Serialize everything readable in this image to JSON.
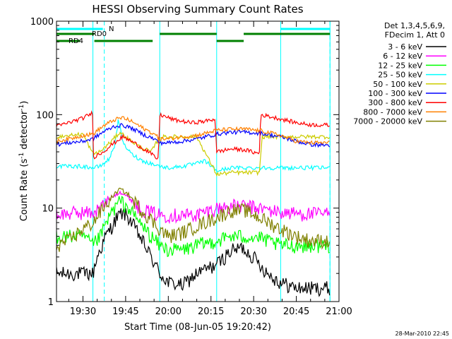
{
  "chart_data": {
    "type": "line",
    "title": "HESSI Observing Summary Count Rates",
    "xlabel": "Start Time (08-Jun-05 19:20:42)",
    "ylabel": "Count Rate (s⁻¹ detector⁻¹)",
    "ylabel_main": "Count Rate (s",
    "ylabel_sup1": "-1",
    "ylabel_mid": " detector",
    "ylabel_sup2": "-1",
    "ylabel_end": ")",
    "y_scale": "log",
    "ylim": [
      1,
      1000
    ],
    "xlim": [
      "19:20:42",
      "21:00:00"
    ],
    "x_ticks": [
      "19:30",
      "19:45",
      "20:00",
      "20:15",
      "20:30",
      "20:45",
      "21:00"
    ],
    "y_ticks": [
      "1",
      "10",
      "100",
      "1000"
    ],
    "legend_header": [
      "Det 1,3,4,5,6,9,",
      "FDecim 1, Att 0"
    ],
    "timestamp": "28-Mar-2010 22:45",
    "flag_labels": {
      "rd0": "RD0",
      "rd4": "RD4",
      "n": "N"
    },
    "colors": {
      "night_lines": "#00ffff",
      "rd0": "#008000",
      "rd4": "#008000",
      "n_flag": "#00ffff"
    },
    "night_boundaries": [
      "19:20:42",
      "19:33:30",
      "19:57:00",
      "20:17:00",
      "20:39:30",
      "20:56:50"
    ],
    "dashed_lines": [
      "19:37:30",
      "20:56:50"
    ],
    "flags": {
      "n": [
        [
          "19:20:42",
          "19:37:00"
        ],
        [
          "20:39:30",
          "20:56:50"
        ]
      ],
      "rd0": [
        [
          "19:20:42",
          "19:34:00"
        ],
        [
          "19:57:00",
          "20:17:00"
        ],
        [
          "20:26:30",
          "20:56:50"
        ]
      ],
      "rd4": [
        [
          "19:20:42",
          "19:29:00"
        ],
        [
          "19:34:00",
          "19:54:30"
        ],
        [
          "20:17:00",
          "20:26:30"
        ]
      ]
    },
    "series": [
      {
        "name": "3 - 6 keV",
        "color": "#000000",
        "points": [
          [
            "19:20:42",
            2
          ],
          [
            "19:25:00",
            2
          ],
          [
            "19:30:00",
            2
          ],
          [
            "19:33:30",
            2
          ],
          [
            "19:35:00",
            3
          ],
          [
            "19:38:00",
            5
          ],
          [
            "19:42:00",
            8
          ],
          [
            "19:44:00",
            9
          ],
          [
            "19:46:00",
            8
          ],
          [
            "19:50:00",
            5
          ],
          [
            "19:54:00",
            3
          ],
          [
            "19:57:00",
            2
          ],
          [
            "20:00:00",
            1.6
          ],
          [
            "20:05:00",
            1.5
          ],
          [
            "20:10:00",
            2
          ],
          [
            "20:17:00",
            2.5
          ],
          [
            "20:22:00",
            3.5
          ],
          [
            "20:26:00",
            3.8
          ],
          [
            "20:30:00",
            3
          ],
          [
            "20:35:00",
            2
          ],
          [
            "20:39:30",
            1.6
          ],
          [
            "20:45:00",
            1.4
          ],
          [
            "20:50:00",
            1.4
          ],
          [
            "20:56:50",
            1.4
          ]
        ]
      },
      {
        "name": "6 - 12 keV",
        "color": "#ff00ff",
        "points": [
          [
            "19:20:42",
            8.5
          ],
          [
            "19:25:00",
            8.8
          ],
          [
            "19:30:00",
            9
          ],
          [
            "19:33:30",
            9
          ],
          [
            "19:36:00",
            10
          ],
          [
            "19:40:00",
            13
          ],
          [
            "19:43:00",
            15
          ],
          [
            "19:46:00",
            13
          ],
          [
            "19:50:00",
            10
          ],
          [
            "19:54:00",
            9
          ],
          [
            "19:57:00",
            8.5
          ],
          [
            "20:00:00",
            8.5
          ],
          [
            "20:05:00",
            8.5
          ],
          [
            "20:10:00",
            8.5
          ],
          [
            "20:17:00",
            10
          ],
          [
            "20:22:00",
            10.5
          ],
          [
            "20:27:00",
            10.5
          ],
          [
            "20:32:00",
            10
          ],
          [
            "20:39:30",
            9
          ],
          [
            "20:45:00",
            8.8
          ],
          [
            "20:50:00",
            8.7
          ],
          [
            "20:56:50",
            8.7
          ]
        ]
      },
      {
        "name": "12 - 25 keV",
        "color": "#00ff00",
        "points": [
          [
            "19:20:42",
            5
          ],
          [
            "19:25:00",
            5
          ],
          [
            "19:30:00",
            5
          ],
          [
            "19:33:30",
            4
          ],
          [
            "19:36:00",
            5
          ],
          [
            "19:40:00",
            9
          ],
          [
            "19:43:00",
            12
          ],
          [
            "19:46:00",
            10
          ],
          [
            "19:50:00",
            7
          ],
          [
            "19:54:00",
            5
          ],
          [
            "19:57:00",
            4
          ],
          [
            "20:00:00",
            3.6
          ],
          [
            "20:05:00",
            3.6
          ],
          [
            "20:10:00",
            4
          ],
          [
            "20:17:00",
            4.5
          ],
          [
            "20:22:00",
            5
          ],
          [
            "20:27:00",
            5
          ],
          [
            "20:32:00",
            4.8
          ],
          [
            "20:39:30",
            4
          ],
          [
            "20:45:00",
            4
          ],
          [
            "20:50:00",
            4
          ],
          [
            "20:56:50",
            4
          ]
        ]
      },
      {
        "name": "25 - 50 keV",
        "color": "#00ffff",
        "points": [
          [
            "19:20:42",
            28
          ],
          [
            "19:25:00",
            28
          ],
          [
            "19:30:00",
            28
          ],
          [
            "19:33:30",
            27
          ],
          [
            "19:36:00",
            28
          ],
          [
            "19:39:00",
            33
          ],
          [
            "19:41:00",
            45
          ],
          [
            "19:42:30",
            90
          ],
          [
            "19:44:00",
            50
          ],
          [
            "19:47:00",
            38
          ],
          [
            "19:51:00",
            32
          ],
          [
            "19:54:00",
            30
          ],
          [
            "19:57:00",
            28
          ],
          [
            "20:00:00",
            27
          ],
          [
            "20:05:00",
            28
          ],
          [
            "20:10:00",
            30
          ],
          [
            "20:13:00",
            32
          ],
          [
            "20:17:00",
            25
          ],
          [
            "20:22:00",
            27
          ],
          [
            "20:27:00",
            27
          ],
          [
            "20:32:00",
            27
          ],
          [
            "20:39:30",
            27
          ],
          [
            "20:45:00",
            27
          ],
          [
            "20:50:00",
            27
          ],
          [
            "20:56:50",
            27
          ]
        ]
      },
      {
        "name": "50 - 100 keV",
        "color": "#cccc00",
        "points": [
          [
            "19:20:42",
            58
          ],
          [
            "19:25:00",
            60
          ],
          [
            "19:30:00",
            62
          ],
          [
            "19:33:30",
            38
          ],
          [
            "19:36:00",
            40
          ],
          [
            "19:40:00",
            52
          ],
          [
            "19:43:00",
            65
          ],
          [
            "19:46:00",
            55
          ],
          [
            "19:50:00",
            45
          ],
          [
            "19:54:00",
            40
          ],
          [
            "19:57:00",
            58
          ],
          [
            "20:00:00",
            58
          ],
          [
            "20:05:00",
            58
          ],
          [
            "20:10:00",
            58
          ],
          [
            "20:17:00",
            23
          ],
          [
            "20:22:00",
            24
          ],
          [
            "20:27:00",
            24
          ],
          [
            "20:32:00",
            24
          ],
          [
            "20:33:00",
            58
          ],
          [
            "20:39:30",
            58
          ],
          [
            "20:45:00",
            58
          ],
          [
            "20:50:00",
            58
          ],
          [
            "20:56:50",
            58
          ]
        ]
      },
      {
        "name": "100 - 300 keV",
        "color": "#0000ff",
        "points": [
          [
            "19:20:42",
            48
          ],
          [
            "19:25:00",
            50
          ],
          [
            "19:30:00",
            52
          ],
          [
            "19:33:30",
            55
          ],
          [
            "19:37:00",
            65
          ],
          [
            "19:41:00",
            75
          ],
          [
            "19:44:00",
            77
          ],
          [
            "19:47:00",
            72
          ],
          [
            "19:51:00",
            62
          ],
          [
            "19:55:00",
            55
          ],
          [
            "19:57:00",
            50
          ],
          [
            "20:00:00",
            50
          ],
          [
            "20:05:00",
            52
          ],
          [
            "20:10:00",
            55
          ],
          [
            "20:17:00",
            62
          ],
          [
            "20:22:00",
            65
          ],
          [
            "20:27:00",
            65
          ],
          [
            "20:33:00",
            63
          ],
          [
            "20:39:30",
            58
          ],
          [
            "20:45:00",
            52
          ],
          [
            "20:50:00",
            48
          ],
          [
            "20:56:50",
            47
          ]
        ]
      },
      {
        "name": "300 - 800 keV",
        "color": "#ff0000",
        "points": [
          [
            "19:20:42",
            75
          ],
          [
            "19:25:00",
            82
          ],
          [
            "19:30:00",
            92
          ],
          [
            "19:33:30",
            105
          ],
          [
            "19:33:40",
            35
          ],
          [
            "19:37:00",
            40
          ],
          [
            "19:41:00",
            50
          ],
          [
            "19:44:00",
            58
          ],
          [
            "19:48:00",
            50
          ],
          [
            "19:53:00",
            40
          ],
          [
            "19:56:30",
            33
          ],
          [
            "19:57:00",
            100
          ],
          [
            "20:02:00",
            88
          ],
          [
            "20:08:00",
            82
          ],
          [
            "20:13:00",
            85
          ],
          [
            "20:16:30",
            90
          ],
          [
            "20:17:00",
            40
          ],
          [
            "20:22:00",
            43
          ],
          [
            "20:27:00",
            42
          ],
          [
            "20:32:00",
            38
          ],
          [
            "20:32:30",
            100
          ],
          [
            "20:39:30",
            90
          ],
          [
            "20:45:00",
            82
          ],
          [
            "20:50:00",
            78
          ],
          [
            "20:56:50",
            77
          ]
        ]
      },
      {
        "name": "800 - 7000 keV",
        "color": "#ff8000",
        "points": [
          [
            "19:20:42",
            52
          ],
          [
            "19:25:00",
            55
          ],
          [
            "19:30:00",
            60
          ],
          [
            "19:33:30",
            62
          ],
          [
            "19:37:00",
            75
          ],
          [
            "19:41:00",
            88
          ],
          [
            "19:44:00",
            93
          ],
          [
            "19:47:00",
            85
          ],
          [
            "19:51:00",
            72
          ],
          [
            "19:55:00",
            62
          ],
          [
            "19:57:00",
            55
          ],
          [
            "20:00:00",
            55
          ],
          [
            "20:05:00",
            58
          ],
          [
            "20:10:00",
            60
          ],
          [
            "20:17:00",
            68
          ],
          [
            "20:22:00",
            70
          ],
          [
            "20:27:00",
            70
          ],
          [
            "20:33:00",
            67
          ],
          [
            "20:39:30",
            60
          ],
          [
            "20:45:00",
            52
          ],
          [
            "20:50:00",
            50
          ],
          [
            "20:56:50",
            50
          ]
        ]
      },
      {
        "name": "7000 - 20000 keV",
        "color": "#808000",
        "points": [
          [
            "19:20:42",
            4
          ],
          [
            "19:25:00",
            4.5
          ],
          [
            "19:30:00",
            6
          ],
          [
            "19:33:30",
            7
          ],
          [
            "19:36:00",
            9
          ],
          [
            "19:40:00",
            13
          ],
          [
            "19:43:00",
            16
          ],
          [
            "19:46:00",
            14
          ],
          [
            "19:50:00",
            10
          ],
          [
            "19:54:00",
            7.5
          ],
          [
            "19:57:00",
            6
          ],
          [
            "20:00:00",
            5
          ],
          [
            "20:05:00",
            5.5
          ],
          [
            "20:10:00",
            6.5
          ],
          [
            "20:17:00",
            8
          ],
          [
            "20:22:00",
            9.5
          ],
          [
            "20:27:00",
            9.5
          ],
          [
            "20:32:00",
            8
          ],
          [
            "20:39:30",
            6
          ],
          [
            "20:45:00",
            5
          ],
          [
            "20:50:00",
            4.5
          ],
          [
            "20:56:50",
            4.5
          ]
        ]
      }
    ]
  }
}
